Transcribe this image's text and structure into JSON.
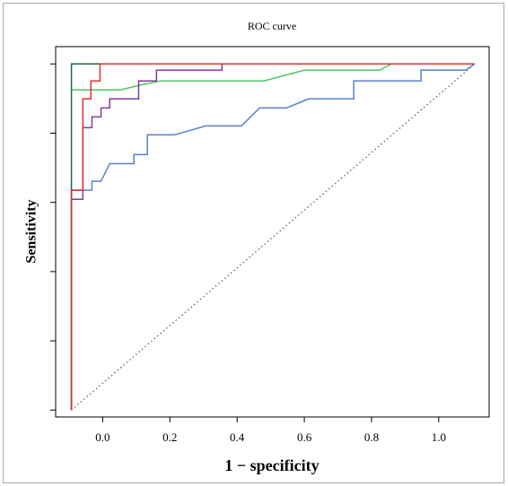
{
  "chart_data": {
    "type": "line",
    "title": "ROC curve",
    "x_label": "1 − specificity",
    "y_label": "Sensitivity",
    "xlim": [
      -0.14,
      1.15
    ],
    "ylim": [
      -0.02,
      1.05
    ],
    "xticks": [
      {
        "value": 0,
        "label": "0.0"
      },
      0.2,
      0.4,
      0.6,
      0.8,
      {
        "value": 1,
        "label": "1.0"
      }
    ],
    "yticks": [
      0,
      0.2,
      0.4,
      0.6,
      0.8,
      1
    ],
    "series": [
      {
        "color": "#555555",
        "dash": "dotted",
        "x": [
          -0.093,
          1.107
        ],
        "values": [
          0,
          1
        ]
      },
      {
        "color": "#5b7fc9",
        "x": [
          -0.093,
          -0.093,
          -0.032,
          -0.032,
          -0.005,
          0.021,
          0.093,
          0.093,
          0.133,
          0.133,
          0.213,
          0.307,
          0.413,
          0.467,
          0.547,
          0.613,
          0.747,
          0.747,
          0.947,
          0.947,
          1.08,
          1.107
        ],
        "values": [
          0,
          0.635,
          0.635,
          0.661,
          0.661,
          0.712,
          0.712,
          0.738,
          0.738,
          0.795,
          0.795,
          0.821,
          0.821,
          0.873,
          0.873,
          0.899,
          0.899,
          0.951,
          0.951,
          0.982,
          0.982,
          1
        ]
      },
      {
        "color": "#4cc46a",
        "x": [
          -0.093,
          0.053,
          0.107,
          0.173,
          0.48,
          0.6,
          0.824,
          0.859,
          1.107
        ],
        "values": [
          0.925,
          0.925,
          0.938,
          0.951,
          0.951,
          0.982,
          0.982,
          1,
          1
        ]
      },
      {
        "color": "#7b3f9e",
        "x": [
          -0.093,
          -0.093,
          -0.059,
          -0.059,
          -0.032,
          -0.032,
          -0.005,
          -0.005,
          0.021,
          0.021,
          0.107,
          0.107,
          0.16,
          0.16,
          0.355,
          0.355,
          1.107
        ],
        "values": [
          0,
          0.609,
          0.609,
          0.816,
          0.816,
          0.847,
          0.847,
          0.873,
          0.873,
          0.899,
          0.899,
          0.951,
          0.951,
          0.982,
          0.982,
          1,
          1
        ]
      },
      {
        "color": "#1a6b3a",
        "x": [
          -0.093,
          -0.093,
          1.107
        ],
        "values": [
          0,
          1,
          1
        ]
      },
      {
        "color": "#e03030",
        "x": [
          -0.093,
          -0.093,
          -0.059,
          -0.059,
          -0.035,
          -0.035,
          -0.008,
          -0.008,
          1.107
        ],
        "values": [
          0,
          0.635,
          0.635,
          0.899,
          0.899,
          0.951,
          0.951,
          1,
          1
        ]
      }
    ]
  }
}
